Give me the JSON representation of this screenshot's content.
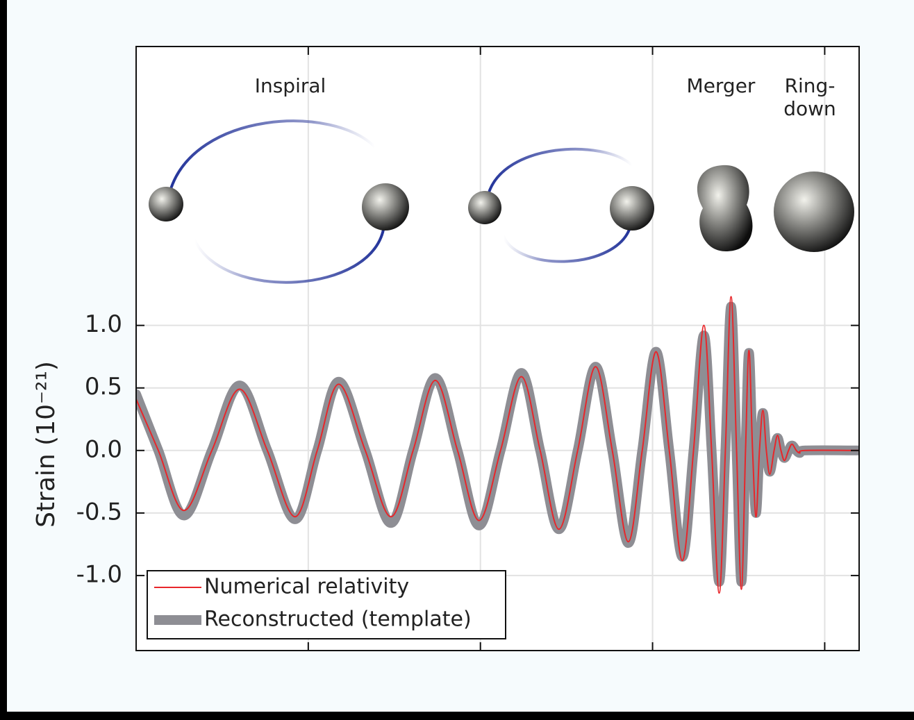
{
  "chart_data": {
    "type": "line",
    "y_label": "Strain (10⁻²¹)",
    "annotations": [
      "Inspiral",
      "Merger",
      "Ring-",
      "down"
    ],
    "x": [
      0,
      0.129,
      0.278,
      0.44,
      0.601,
      0.762,
      0.923,
      1.052,
      1.177,
      1.331,
      1.48,
      1.609,
      1.738,
      1.867,
      1.992,
      2.117,
      2.238,
      2.347,
      2.456,
      2.565,
      2.669,
      2.766,
      2.859,
      2.94,
      3.02,
      3.097,
      3.173,
      3.238,
      3.298,
      3.343,
      3.387,
      3.423,
      3.456,
      3.488,
      3.516,
      3.54,
      3.56,
      3.581,
      3.601,
      3.621,
      3.641,
      3.661,
      3.681,
      3.706,
      3.726,
      3.746,
      3.766,
      3.79,
      3.81,
      3.835,
      3.855,
      3.887,
      4.198
    ],
    "series": [
      {
        "name": "Reconstructed (template)",
        "color": "#8e8e94",
        "width": 14,
        "values": [
          0.45,
          0,
          -0.52,
          0,
          0.52,
          0,
          -0.55,
          0,
          0.55,
          0,
          -0.58,
          0,
          0.58,
          0,
          -0.6,
          0,
          0.62,
          0,
          -0.63,
          0,
          0.67,
          0,
          -0.74,
          0,
          0.79,
          0,
          -0.85,
          0,
          0.92,
          0,
          -1.05,
          0,
          1.15,
          0,
          -1.05,
          0,
          0.78,
          0,
          -0.5,
          0,
          0.3,
          0,
          -0.17,
          0,
          0.1,
          0,
          -0.06,
          0,
          0.04,
          0,
          -0.02,
          0,
          0
        ]
      },
      {
        "name": "Numerical relativity",
        "color": "#e8262a",
        "width": 2,
        "values": [
          0.41,
          0,
          -0.48,
          0,
          0.49,
          0,
          -0.53,
          0,
          0.53,
          0,
          -0.53,
          0,
          0.56,
          0,
          -0.56,
          0,
          0.59,
          0,
          -0.63,
          0,
          0.67,
          0,
          -0.73,
          0,
          0.79,
          0,
          -0.88,
          0,
          1.0,
          0,
          -1.14,
          0,
          1.23,
          0,
          -1.11,
          0,
          0.8,
          0,
          -0.53,
          0,
          0.32,
          0,
          -0.19,
          0,
          0.12,
          0,
          -0.08,
          0,
          0.05,
          0,
          -0.02,
          0,
          0
        ]
      }
    ],
    "xlim": [
      0,
      4.2
    ],
    "xticks": [
      1,
      2,
      3,
      4
    ],
    "ylim": [
      -1.6,
      3.23
    ],
    "yticks": [
      {
        "value": 1,
        "label": "1.0"
      },
      {
        "value": 0.5,
        "label": "0.5"
      },
      {
        "value": 0,
        "label": "0.0"
      },
      {
        "value": -0.5,
        "label": "-0.5"
      },
      {
        "value": -1,
        "label": "-1.0"
      }
    ],
    "grid": true,
    "legend": "lower left"
  }
}
